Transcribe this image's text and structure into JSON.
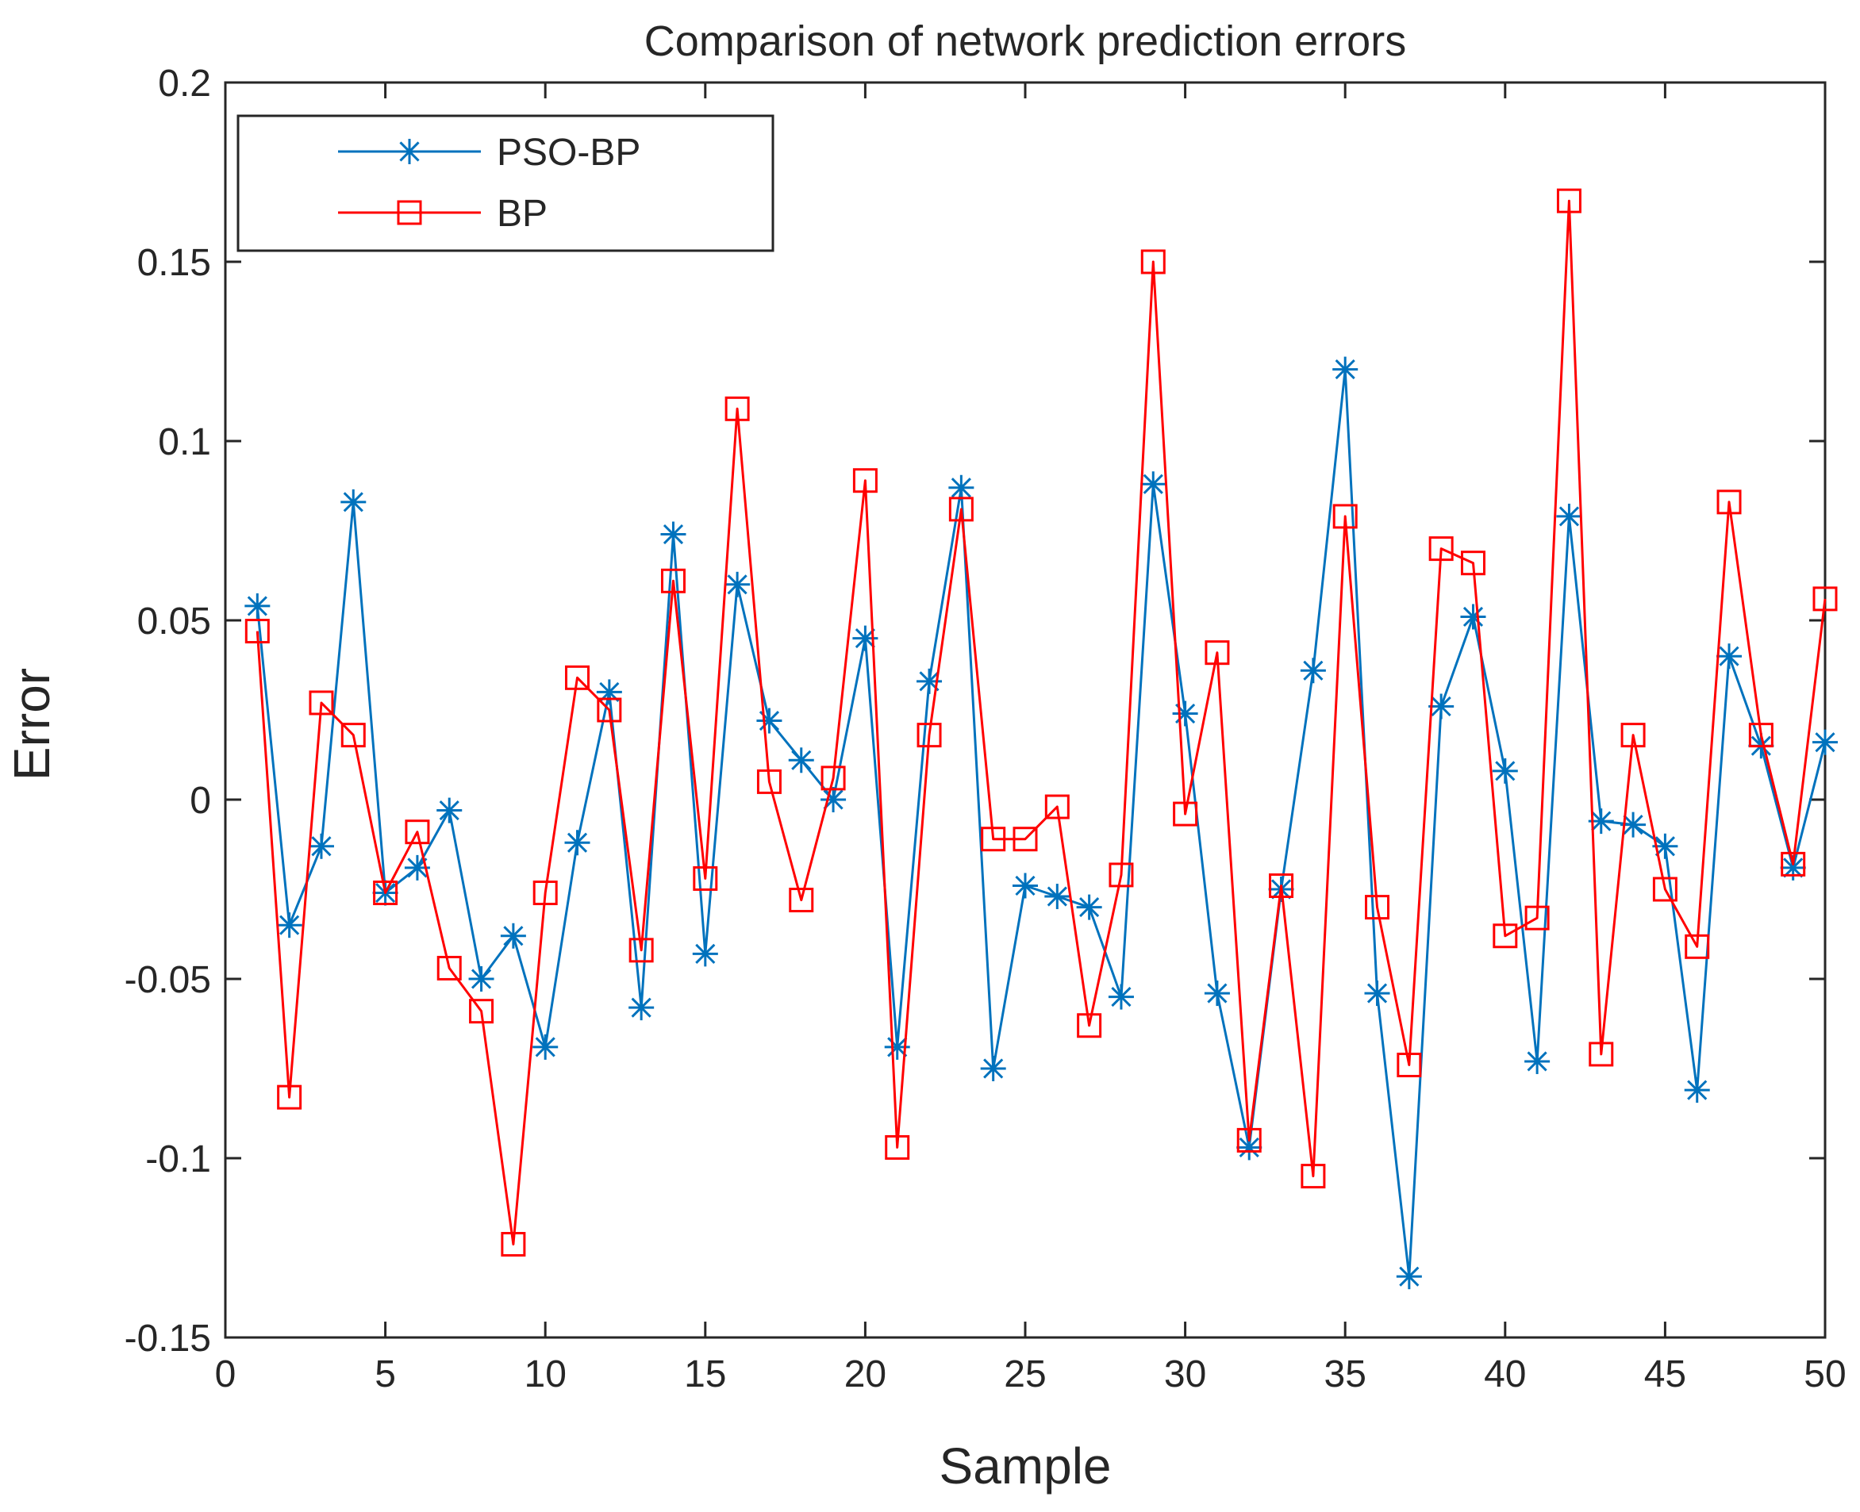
{
  "chart_data": {
    "type": "line",
    "title": "Comparison of network prediction errors",
    "xlabel": "Sample",
    "ylabel": "Error",
    "xlim": [
      0,
      50
    ],
    "ylim": [
      -0.15,
      0.2
    ],
    "xticks": [
      0,
      5,
      10,
      15,
      20,
      25,
      30,
      35,
      40,
      45,
      50
    ],
    "xtick_labels": [
      "0",
      "5",
      "10",
      "15",
      "20",
      "25",
      "30",
      "35",
      "40",
      "45",
      "50"
    ],
    "yticks": [
      -0.15,
      -0.1,
      -0.05,
      0,
      0.05,
      0.1,
      0.15,
      0.2
    ],
    "ytick_labels": [
      "-0.15",
      "-0.1",
      "-0.05",
      "0",
      "0.05",
      "0.1",
      "0.15",
      "0.2"
    ],
    "grid": false,
    "legend_position": "top-left",
    "x": [
      1,
      2,
      3,
      4,
      5,
      6,
      7,
      8,
      9,
      10,
      11,
      12,
      13,
      14,
      15,
      16,
      17,
      18,
      19,
      20,
      21,
      22,
      23,
      24,
      25,
      26,
      27,
      28,
      29,
      30,
      31,
      32,
      33,
      34,
      35,
      36,
      37,
      38,
      39,
      40,
      41,
      42,
      43,
      44,
      45,
      46,
      47,
      48,
      49,
      50
    ],
    "series": [
      {
        "name": "PSO-BP",
        "color": "#0072BD",
        "marker": "asterisk",
        "values": [
          0.054,
          -0.035,
          -0.013,
          0.083,
          -0.026,
          -0.019,
          -0.003,
          -0.05,
          -0.038,
          -0.069,
          -0.012,
          0.03,
          -0.058,
          0.074,
          -0.043,
          0.06,
          0.022,
          0.011,
          0.0,
          0.045,
          -0.069,
          0.033,
          0.087,
          -0.075,
          -0.024,
          -0.027,
          -0.03,
          -0.055,
          0.088,
          0.024,
          -0.054,
          -0.097,
          -0.025,
          0.036,
          0.12,
          -0.054,
          -0.133,
          0.026,
          0.051,
          0.008,
          -0.073,
          0.079,
          -0.006,
          -0.007,
          -0.013,
          -0.081,
          0.04,
          0.015,
          -0.019,
          0.016
        ]
      },
      {
        "name": "BP",
        "color": "#FF0000",
        "marker": "square",
        "values": [
          0.047,
          -0.083,
          0.027,
          0.018,
          -0.026,
          -0.009,
          -0.047,
          -0.059,
          -0.124,
          -0.026,
          0.034,
          0.025,
          -0.042,
          0.061,
          -0.022,
          0.109,
          0.005,
          -0.028,
          0.006,
          0.089,
          -0.097,
          0.018,
          0.081,
          -0.011,
          -0.011,
          -0.002,
          -0.063,
          -0.021,
          0.15,
          -0.004,
          0.041,
          -0.095,
          -0.024,
          -0.105,
          0.079,
          -0.03,
          -0.074,
          0.07,
          0.066,
          -0.038,
          -0.033,
          0.167,
          -0.071,
          0.018,
          -0.025,
          -0.041,
          0.083,
          0.018,
          -0.018,
          0.056
        ]
      }
    ]
  }
}
